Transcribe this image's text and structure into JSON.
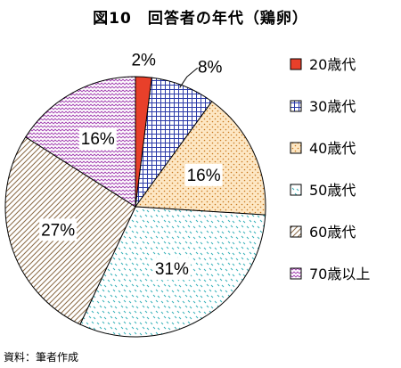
{
  "title": "図10　回答者の年代（鶏卵）",
  "source": "資料：筆者作成",
  "chart_data": {
    "type": "pie",
    "title": "図10　回答者の年代（鶏卵）",
    "legend_position": "right",
    "slices": [
      {
        "label": "20歳代",
        "value": 2,
        "display": "2%",
        "color": "#e8402a",
        "pattern": "solid"
      },
      {
        "label": "30歳代",
        "value": 8,
        "display": "8%",
        "color": "#2b3aa8",
        "pattern": "grid"
      },
      {
        "label": "40歳代",
        "value": 16,
        "display": "16%",
        "color": "#e89a2c",
        "pattern": "dots"
      },
      {
        "label": "50歳代",
        "value": 31,
        "display": "31%",
        "color": "#33b0b8",
        "pattern": "dashes"
      },
      {
        "label": "60歳代",
        "value": 27,
        "display": "27%",
        "color": "#8b6a46",
        "pattern": "diagonal"
      },
      {
        "label": "70歳以上",
        "value": 16,
        "display": "16%",
        "color": "#a23fb0",
        "pattern": "zigzag"
      }
    ]
  }
}
